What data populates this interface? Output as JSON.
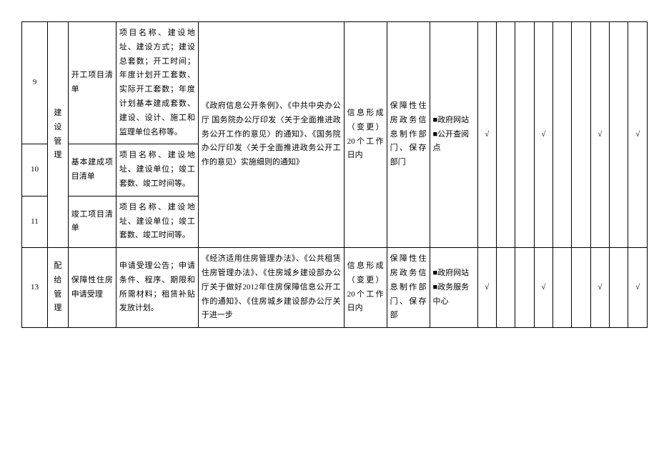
{
  "rows": [
    {
      "num": "9",
      "category": "建设管理",
      "sub": "开工项目清单",
      "content": "项目名称、建设地址、建设方式；建设总套数；开工时间；年度计划开工套数、实际开工套数；年度计划基本建成套数、建设、设计、施工和监理单位名称等。",
      "basis": "《政府信息公开条例》、《中共中央办公厅 国务院办公厅印发〈关于全面推进政务公开工作的意见〉的通知》、《国务院办公厅印发〈关于全面推进政务公开工作的意见〉实施细则的通知》",
      "time": "信息形成（变更）20个工作日内",
      "subject": "保障性住房政务信息制作部门、保存部门",
      "channel": "■政府网站 ■公开查阅点",
      "checks": [
        "√",
        "",
        "",
        "√",
        "",
        "",
        "√",
        "",
        "√"
      ]
    },
    {
      "num": "10",
      "sub": "基本建成项目清单",
      "content": "项目名称、建设地址、建设单位；竣工套数、竣工时间等。"
    },
    {
      "num": "11",
      "sub": "竣工项目清单",
      "content": "项目名称、建设地址、建设单位；竣工套数、竣工时间等。"
    },
    {
      "num": "13",
      "category": "配给管理",
      "sub": "保障性住房申请受理",
      "content": "申请受理公告；申请条件、程序、期限和所需材料；租赁补贴发放计划。",
      "basis": "《经济适用住房管理办法》、《公共租赁住房管理办法》、《住房城乡建设部办公厅关于做好2012年住房保障信息公开工作的通知》、《住房城乡建设部办公厅关于进一步",
      "time": "信息形成（变更）20个工作日内",
      "subject": "保障性住房政务信息制作部门、保存部",
      "channel": "■政府网站 ■政务服务中心",
      "checks": [
        "√",
        "",
        "",
        "√",
        "",
        "",
        "√",
        "",
        "√"
      ]
    }
  ]
}
